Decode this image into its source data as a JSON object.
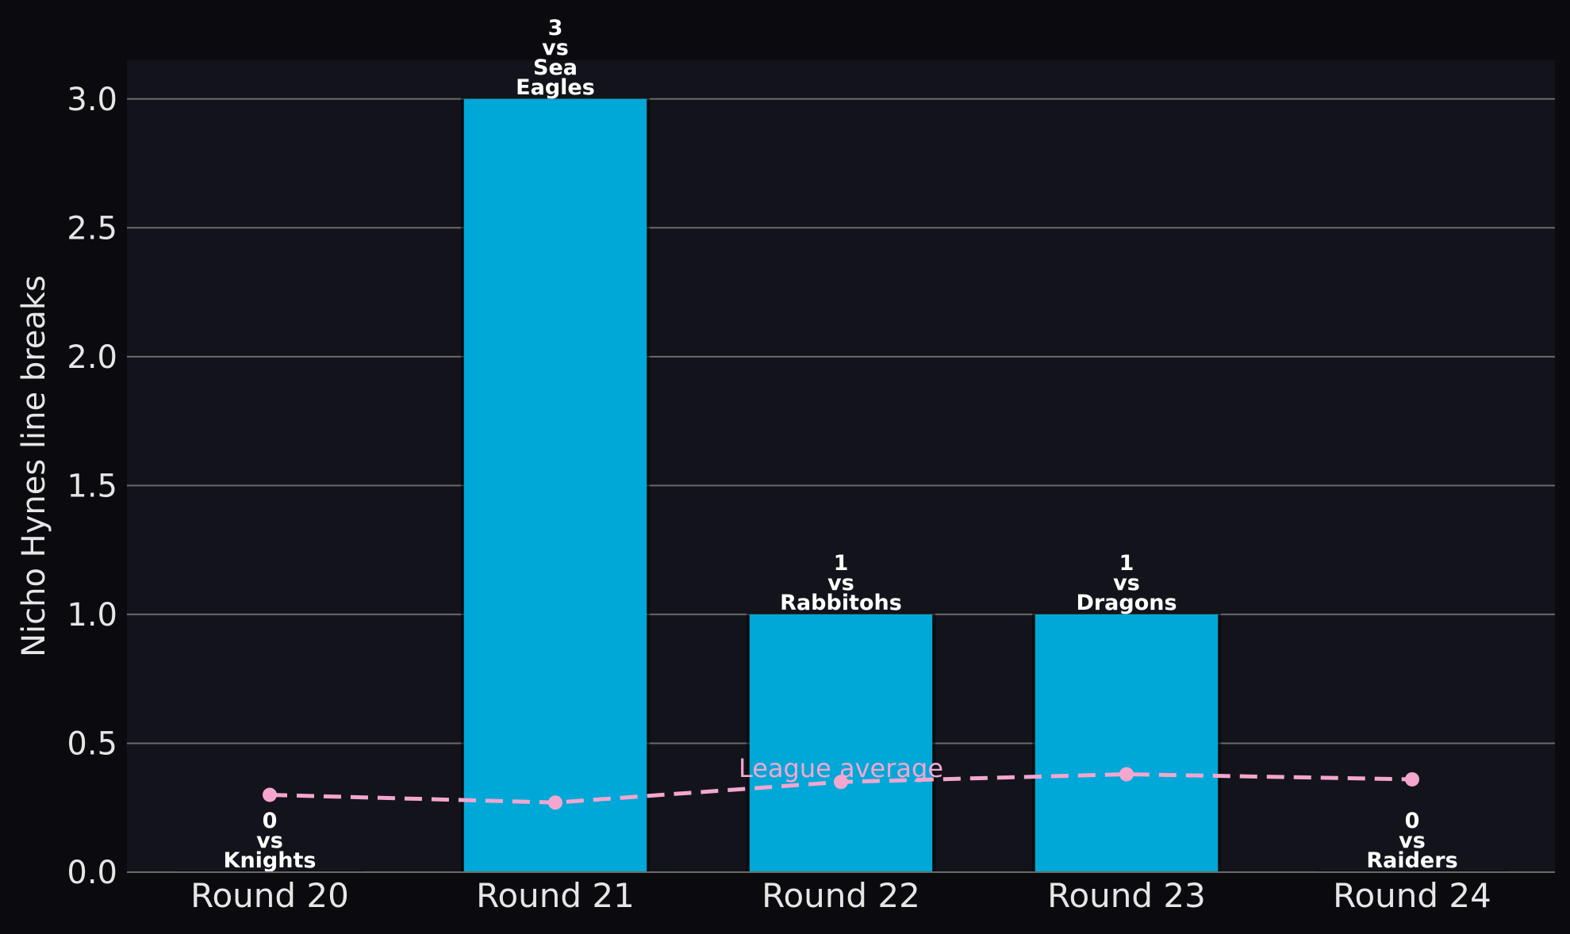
{
  "chart_data": {
    "type": "bar",
    "title": "",
    "xlabel": "",
    "ylabel": "Nicho Hynes line breaks",
    "categories": [
      "Round 20",
      "Round 21",
      "Round 22",
      "Round 23",
      "Round 24"
    ],
    "values": [
      0,
      3,
      1,
      1,
      0
    ],
    "bar_labels": [
      [
        "0",
        "vs",
        "Knights"
      ],
      [
        "3",
        "vs",
        "Sea",
        "Eagles"
      ],
      [
        "1",
        "vs",
        "Rabbitohs"
      ],
      [
        "1",
        "vs",
        "Dragons"
      ],
      [
        "0",
        "vs",
        "Raiders"
      ]
    ],
    "league_average": {
      "name": "League average",
      "values": [
        0.3,
        0.27,
        0.35,
        0.38,
        0.36
      ]
    },
    "ylim": [
      0,
      3.15
    ],
    "yticks": [
      "0.0",
      "0.5",
      "1.0",
      "1.5",
      "2.0",
      "2.5",
      "3.0"
    ],
    "grid": "horizontal",
    "colors": {
      "background": "#0b0b0f",
      "plot_background": "#13141b",
      "bar": "#00a8d8",
      "league_average": "#f4a6cf",
      "grid": "#6a6a6a",
      "text": "#e6e6e6",
      "label": "#ffffff"
    }
  }
}
